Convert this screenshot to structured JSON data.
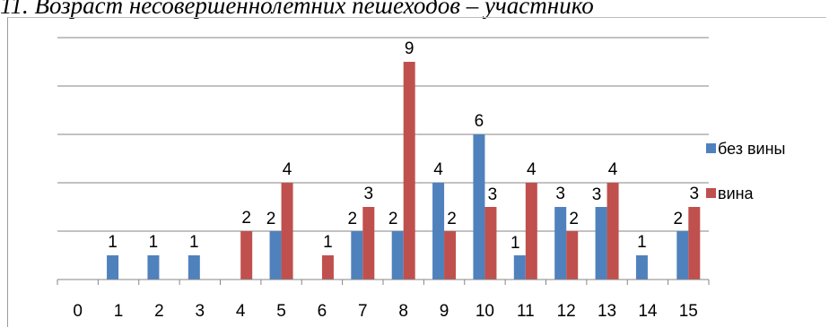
{
  "caption": "11. Возраст несовершеннолетних пешеходов – участнико",
  "chart_data": {
    "type": "bar",
    "categories": [
      "0",
      "1",
      "2",
      "3",
      "4",
      "5",
      "6",
      "7",
      "8",
      "9",
      "10",
      "11",
      "12",
      "13",
      "14",
      "15"
    ],
    "series": [
      {
        "name": "без вины",
        "color": "#4f81bd",
        "values": [
          0,
          1,
          1,
          1,
          0,
          2,
          0,
          2,
          2,
          4,
          6,
          1,
          3,
          3,
          1,
          2
        ]
      },
      {
        "name": "вина",
        "color": "#c0504d",
        "values": [
          0,
          0,
          0,
          0,
          2,
          4,
          1,
          3,
          9,
          2,
          3,
          4,
          2,
          4,
          0,
          3
        ]
      }
    ],
    "ylim": [
      0,
      10
    ],
    "grid": true,
    "legend": "right",
    "data_labels": true
  }
}
